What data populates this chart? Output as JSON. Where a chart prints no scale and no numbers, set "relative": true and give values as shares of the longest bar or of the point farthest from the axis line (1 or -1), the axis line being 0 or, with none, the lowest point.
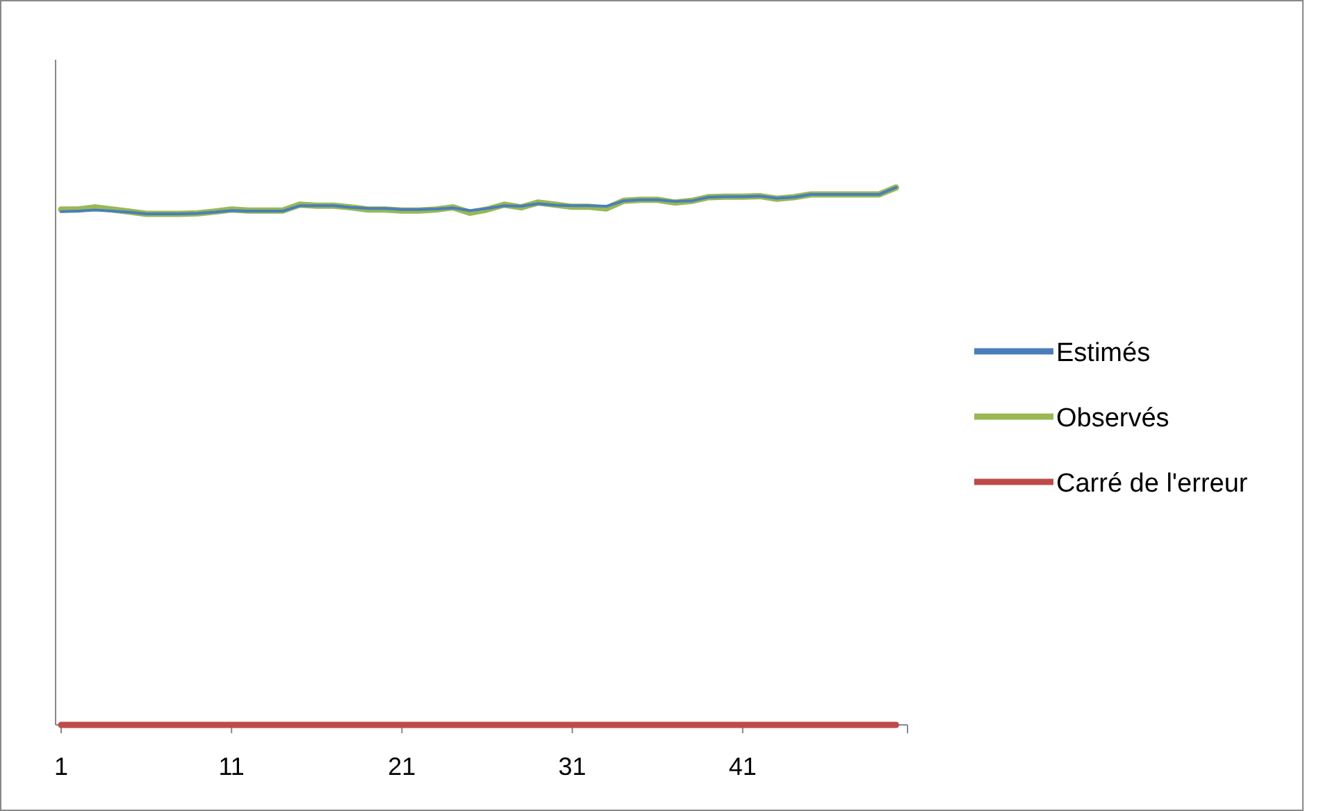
{
  "chart_data": {
    "type": "line",
    "relative": true,
    "legend": "right",
    "grid": false,
    "categories": [
      "1",
      null,
      null,
      null,
      null,
      null,
      null,
      null,
      null,
      null,
      "11",
      null,
      null,
      null,
      null,
      null,
      null,
      null,
      null,
      null,
      "21",
      null,
      null,
      null,
      null,
      null,
      null,
      null,
      null,
      null,
      "31",
      null,
      null,
      null,
      null,
      null,
      null,
      null,
      null,
      null,
      "41",
      null,
      null,
      null,
      null,
      null,
      null,
      null,
      null,
      null
    ],
    "series": [
      {
        "name": "Estimés",
        "color": "#4a7ebb",
        "values": [
          0.955,
          0.956,
          0.958,
          0.956,
          0.954,
          0.951,
          0.951,
          0.951,
          0.952,
          0.954,
          0.957,
          0.956,
          0.956,
          0.956,
          0.966,
          0.966,
          0.966,
          0.963,
          0.961,
          0.961,
          0.959,
          0.959,
          0.96,
          0.962,
          0.957,
          0.961,
          0.966,
          0.965,
          0.97,
          0.967,
          0.966,
          0.966,
          0.965,
          0.975,
          0.977,
          0.977,
          0.974,
          0.975,
          0.982,
          0.983,
          0.983,
          0.984,
          0.98,
          0.982,
          0.987,
          0.987,
          0.987,
          0.987,
          0.987,
          1
        ]
      },
      {
        "name": "Observés",
        "color": "#98b954",
        "values": [
          0.959,
          0.959,
          0.963,
          0.959,
          0.955,
          0.951,
          0.951,
          0.951,
          0.952,
          0.955,
          0.959,
          0.957,
          0.957,
          0.957,
          0.968,
          0.966,
          0.966,
          0.963,
          0.959,
          0.959,
          0.957,
          0.957,
          0.959,
          0.963,
          0.953,
          0.959,
          0.968,
          0.963,
          0.972,
          0.968,
          0.964,
          0.964,
          0.961,
          0.975,
          0.977,
          0.977,
          0.972,
          0.975,
          0.982,
          0.983,
          0.983,
          0.984,
          0.979,
          0.982,
          0.987,
          0.987,
          0.987,
          0.987,
          0.987,
          1
        ]
      },
      {
        "name": "Carré de l'erreur",
        "color": "#be4b48",
        "values": [
          0,
          0,
          0,
          0,
          0,
          0,
          0,
          0,
          0,
          0,
          0,
          0,
          0,
          0,
          0,
          0,
          0,
          0,
          0,
          0,
          0,
          0,
          0,
          0,
          0,
          0,
          0,
          0,
          0,
          0,
          0,
          0,
          0,
          0,
          0,
          0,
          0,
          0,
          0,
          0,
          0,
          0,
          0,
          0,
          0,
          0,
          0,
          0,
          0,
          0
        ]
      }
    ]
  }
}
